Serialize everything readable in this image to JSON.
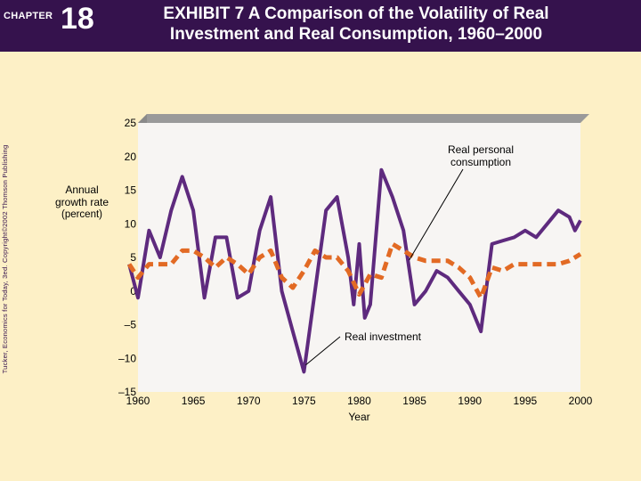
{
  "header": {
    "chapter_label": "CHAPTER",
    "chapter_number": "18",
    "title_line1": "EXHIBIT 7 A Comparison of the Volatility of Real",
    "title_line2": "Investment and Real Consumption, 1960–2000",
    "bg_color": "#35124d"
  },
  "side_credit": "Tucker, Economics for Today, 3ed. Copyright©2002 Thomson Publishing",
  "chart_data": {
    "type": "line",
    "ylabel_line1": "Annual",
    "ylabel_line2": "growth rate",
    "ylabel_line3": "(percent)",
    "xlabel": "Year",
    "xlim": [
      1960,
      2000
    ],
    "ylim": [
      -15,
      25
    ],
    "y_ticks": [
      25,
      20,
      15,
      10,
      5,
      0,
      -5,
      -10,
      -15
    ],
    "y_tick_labels": [
      "25",
      "20",
      "15",
      "10",
      "5",
      "0",
      "–5",
      "–10",
      "–15"
    ],
    "x_ticks": [
      1960,
      1965,
      1970,
      1975,
      1980,
      1985,
      1990,
      1995,
      2000
    ],
    "x_tick_labels": [
      "1960",
      "1965",
      "1970",
      "1975",
      "1980",
      "1985",
      "1990",
      "1995",
      "2000"
    ],
    "series": [
      {
        "name": "Real investment",
        "style": "solid",
        "color": "#5e2a7e",
        "x": [
          1959.2,
          1960,
          1961,
          1962,
          1963,
          1964,
          1965,
          1966,
          1967,
          1968,
          1969,
          1970,
          1971,
          1972,
          1973,
          1974,
          1975,
          1976,
          1977,
          1978,
          1979,
          1979.5,
          1980,
          1980.5,
          1981,
          1982,
          1983,
          1984,
          1985,
          1986,
          1987,
          1988,
          1989,
          1990,
          1991,
          1992,
          1993,
          1994,
          1995,
          1996,
          1997,
          1998,
          1999,
          1999.5,
          2000
        ],
        "values": [
          4,
          -1,
          9,
          5,
          12,
          17,
          12,
          -1,
          8,
          8,
          -1,
          0,
          9,
          14,
          0,
          -6,
          -12,
          0,
          12,
          14,
          5,
          -2,
          7,
          -4,
          -2,
          18,
          14,
          9,
          -2,
          0,
          3,
          2,
          0,
          -2,
          -6,
          7,
          7.5,
          8,
          9,
          8,
          10,
          12,
          11,
          9,
          10.5
        ]
      },
      {
        "name": "Real personal consumption",
        "style": "dashed",
        "color": "#e26a24",
        "x": [
          1959.2,
          1960,
          1961,
          1962,
          1963,
          1964,
          1965,
          1966,
          1967,
          1968,
          1969,
          1970,
          1971,
          1972,
          1973,
          1974,
          1975,
          1976,
          1977,
          1978,
          1979,
          1980,
          1981,
          1982,
          1983,
          1984,
          1985,
          1986,
          1987,
          1988,
          1989,
          1990,
          1991,
          1992,
          1993,
          1994,
          1995,
          1996,
          1997,
          1998,
          1999,
          2000
        ],
        "values": [
          4,
          2,
          4,
          4,
          4,
          6,
          6,
          5,
          3.5,
          5,
          4,
          2.5,
          5,
          6,
          2,
          0.5,
          3,
          6,
          5,
          5,
          3,
          -0.5,
          2.5,
          2,
          7,
          6,
          5,
          4.5,
          4.5,
          4.5,
          3.5,
          2,
          -1,
          3.5,
          3,
          4,
          4,
          4,
          4,
          4,
          4.5,
          5.5
        ]
      }
    ],
    "annotations": [
      {
        "text_line1": "Real personal",
        "text_line2": "consumption",
        "points_to": [
          1985,
          5
        ]
      },
      {
        "text": "Real  investment",
        "points_to": [
          1975,
          -11
        ]
      }
    ]
  }
}
